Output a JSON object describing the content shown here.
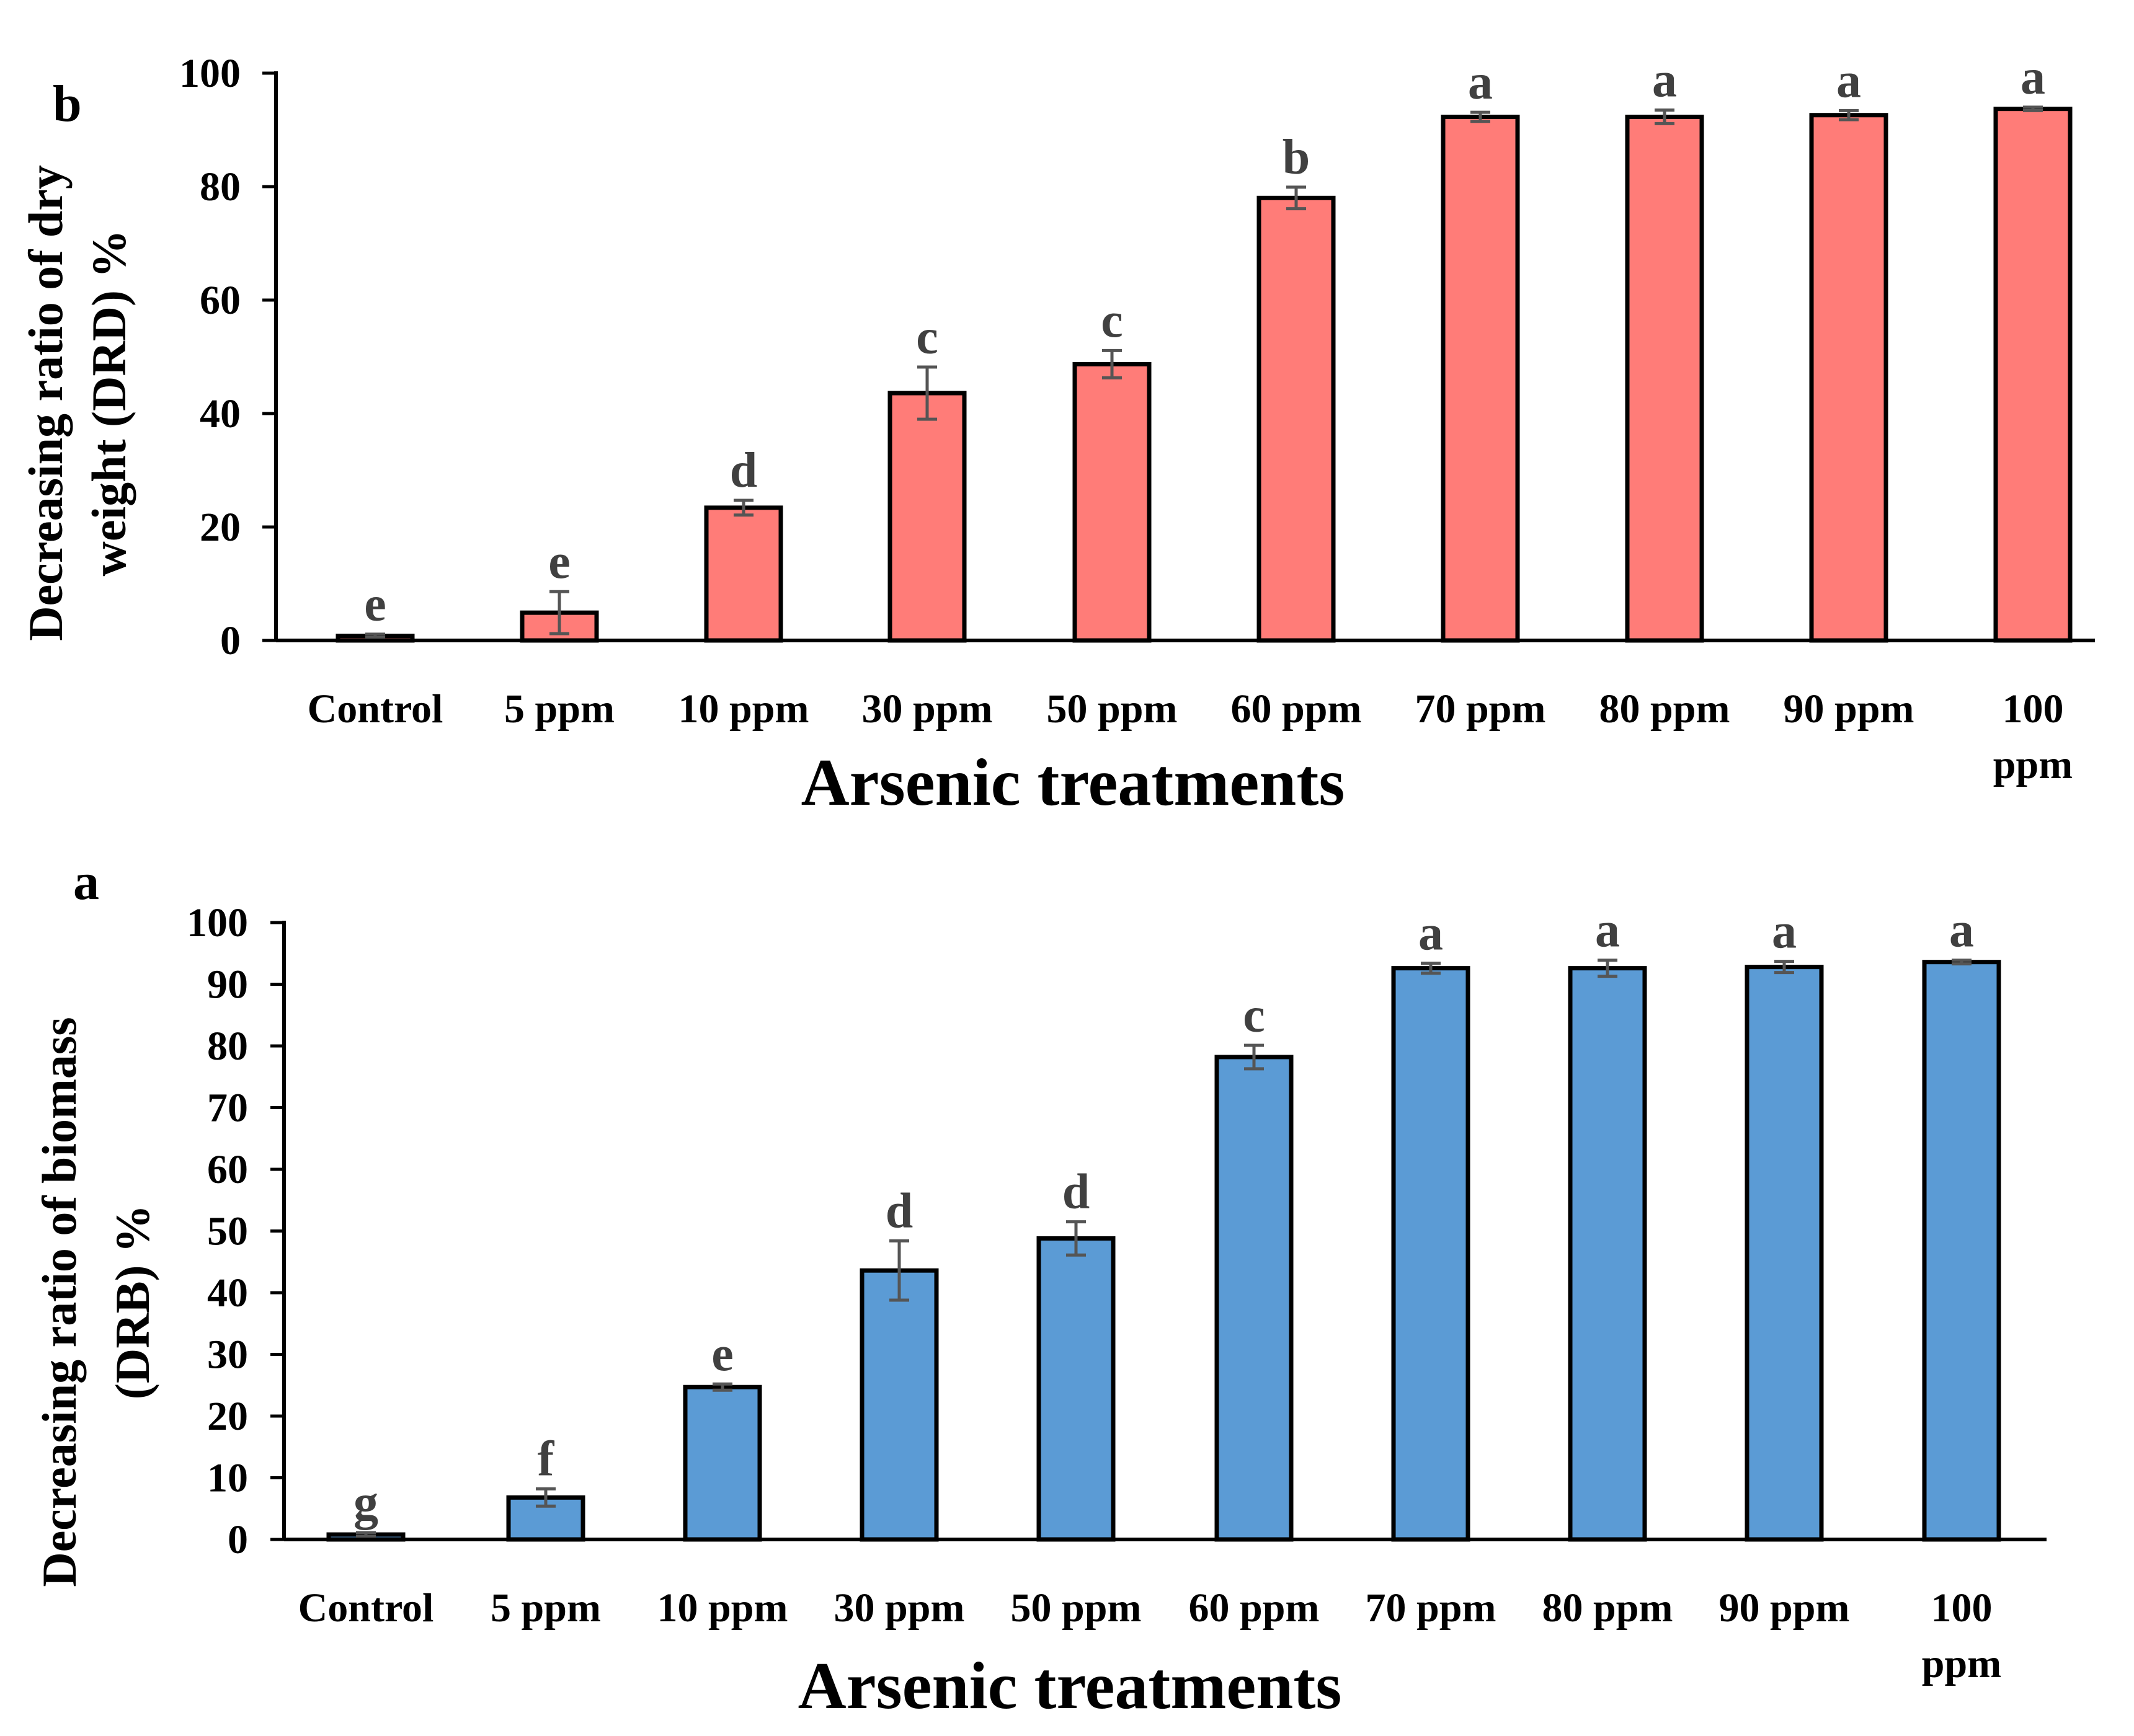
{
  "chart_data": [
    {
      "panel_label": "b",
      "type": "bar",
      "color": "#FF7C78",
      "xlabel": "Arsenic treatments",
      "ylabel_lines": [
        "Decreasing ratio of dry",
        "weight (DRD) %"
      ],
      "ylim": [
        0,
        100
      ],
      "yticks": [
        0,
        20,
        40,
        60,
        80,
        100
      ],
      "categories": [
        [
          "Control"
        ],
        [
          "5 ppm"
        ],
        [
          "10 ppm"
        ],
        [
          "30 ppm"
        ],
        [
          "50 ppm"
        ],
        [
          "60 ppm"
        ],
        [
          "70 ppm"
        ],
        [
          "80 ppm"
        ],
        [
          "90 ppm"
        ],
        [
          "100",
          "ppm"
        ]
      ],
      "values": [
        0.8,
        4.9,
        23.4,
        43.6,
        48.7,
        78.0,
        92.3,
        92.3,
        92.6,
        93.7
      ],
      "errors": [
        0.3,
        3.7,
        1.3,
        4.6,
        2.4,
        1.9,
        0.8,
        1.2,
        0.8,
        0.3
      ],
      "letters": [
        "e",
        "e",
        "d",
        "c",
        "c",
        "b",
        "a",
        "a",
        "a",
        "a"
      ]
    },
    {
      "panel_label": "a",
      "type": "bar",
      "color": "#5B9BD5",
      "xlabel": "Arsenic treatments",
      "ylabel_lines": [
        "Decreasing ratio of biomass",
        "(DRB) %"
      ],
      "ylim": [
        0,
        100
      ],
      "yticks": [
        0,
        10,
        20,
        30,
        40,
        50,
        60,
        70,
        80,
        90,
        100
      ],
      "categories": [
        [
          "Control"
        ],
        [
          "5 ppm"
        ],
        [
          "10 ppm"
        ],
        [
          "30 ppm"
        ],
        [
          "50 ppm"
        ],
        [
          "60 ppm"
        ],
        [
          "70 ppm"
        ],
        [
          "80 ppm"
        ],
        [
          "90 ppm"
        ],
        [
          "100",
          "ppm"
        ]
      ],
      "values": [
        0.8,
        6.8,
        24.7,
        43.6,
        48.8,
        78.2,
        92.6,
        92.6,
        92.8,
        93.6
      ],
      "errors": [
        0.3,
        1.4,
        0.5,
        4.8,
        2.7,
        1.9,
        0.8,
        1.3,
        0.9,
        0.3
      ],
      "letters": [
        "g",
        "f",
        "e",
        "d",
        "d",
        "c",
        "a",
        "a",
        "a",
        "a"
      ]
    }
  ]
}
